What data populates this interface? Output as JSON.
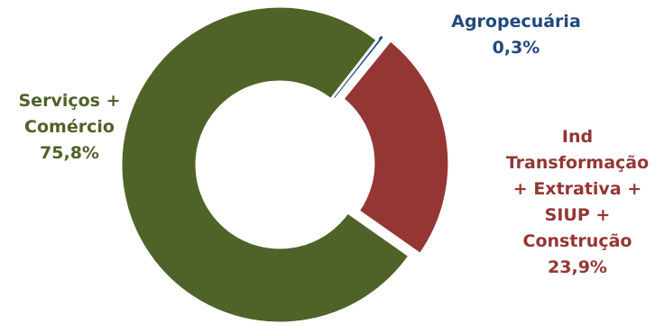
{
  "chart_data": {
    "type": "pie",
    "donut": true,
    "slices": [
      {
        "label_lines": [
          "Agropecuária"
        ],
        "value_label": "0,3%",
        "value": 0.3,
        "color": "#1F497D"
      },
      {
        "label_lines": [
          "Ind",
          "Transformação",
          "+ Extrativa +",
          "SIUP +",
          "Construção"
        ],
        "value_label": "23,9%",
        "value": 23.9,
        "color": "#943634",
        "exploded": true
      },
      {
        "label_lines": [
          "Serviços +",
          "Comércio"
        ],
        "value_label": "75,8%",
        "value": 75.8,
        "color": "#4F6228"
      }
    ]
  }
}
